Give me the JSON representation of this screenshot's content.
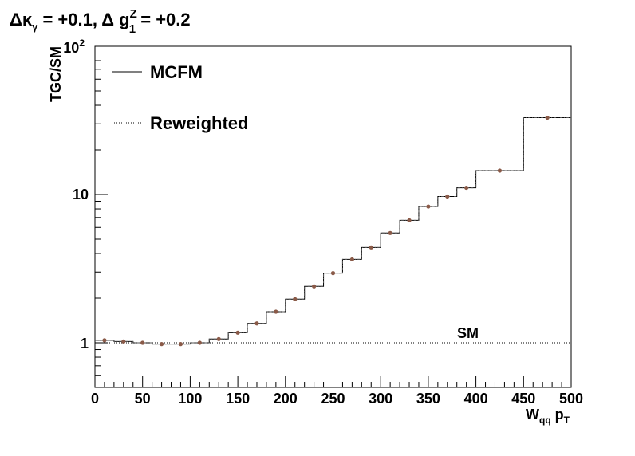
{
  "chart_data": {
    "type": "line",
    "title": {
      "kappa_symbol": "Δκ",
      "kappa_sub": "γ",
      "kappa_value": " = +0.1, ",
      "g_prefix": "Δ g",
      "g_sup": "Z",
      "g_sub": "1",
      "g_value": " = +0.2"
    },
    "xlabel": {
      "main": "W",
      "sub1": "qq",
      "mid": " p",
      "sub2": "T"
    },
    "ylabel": "TGC/SM",
    "xlim": [
      0,
      500
    ],
    "ylim": [
      0.5,
      100
    ],
    "y_scale": "log",
    "x_ticks": [
      0,
      50,
      100,
      150,
      200,
      250,
      300,
      350,
      400,
      450,
      500
    ],
    "x_tick_labels": [
      "0",
      "50",
      "100",
      "150",
      "200",
      "250",
      "300",
      "350",
      "400",
      "450",
      "500"
    ],
    "y_tick_labels": {
      "ten_base": "10",
      "ten_exp": "2",
      "ten": "10",
      "one": "1"
    },
    "legend": {
      "placement": "top-left",
      "entries": [
        {
          "label": "MCFM",
          "style": "solid"
        },
        {
          "label": "Reweighted",
          "style": "dotted"
        }
      ]
    },
    "sm_reference": {
      "label": "SM",
      "value": 1
    },
    "bin_edges": [
      0,
      20,
      40,
      60,
      80,
      100,
      120,
      140,
      160,
      180,
      200,
      220,
      240,
      260,
      280,
      300,
      320,
      340,
      360,
      380,
      400,
      450,
      500
    ],
    "series": [
      {
        "name": "MCFM",
        "values": [
          1.04,
          1.02,
          1.0,
          0.98,
          0.98,
          1.0,
          1.06,
          1.17,
          1.35,
          1.62,
          1.97,
          2.4,
          2.95,
          3.65,
          4.4,
          5.5,
          6.7,
          8.3,
          9.7,
          11.1,
          14.5,
          33.0
        ]
      },
      {
        "name": "Reweighted",
        "values": [
          1.04,
          1.02,
          1.0,
          0.98,
          0.98,
          1.0,
          1.06,
          1.17,
          1.35,
          1.62,
          1.97,
          2.4,
          2.95,
          3.65,
          4.4,
          5.5,
          6.7,
          8.3,
          9.7,
          11.1,
          14.5,
          33.0
        ]
      }
    ],
    "colors": {
      "frame": "#000000",
      "markers": "#8a5a48",
      "background": "#ffffff"
    }
  }
}
